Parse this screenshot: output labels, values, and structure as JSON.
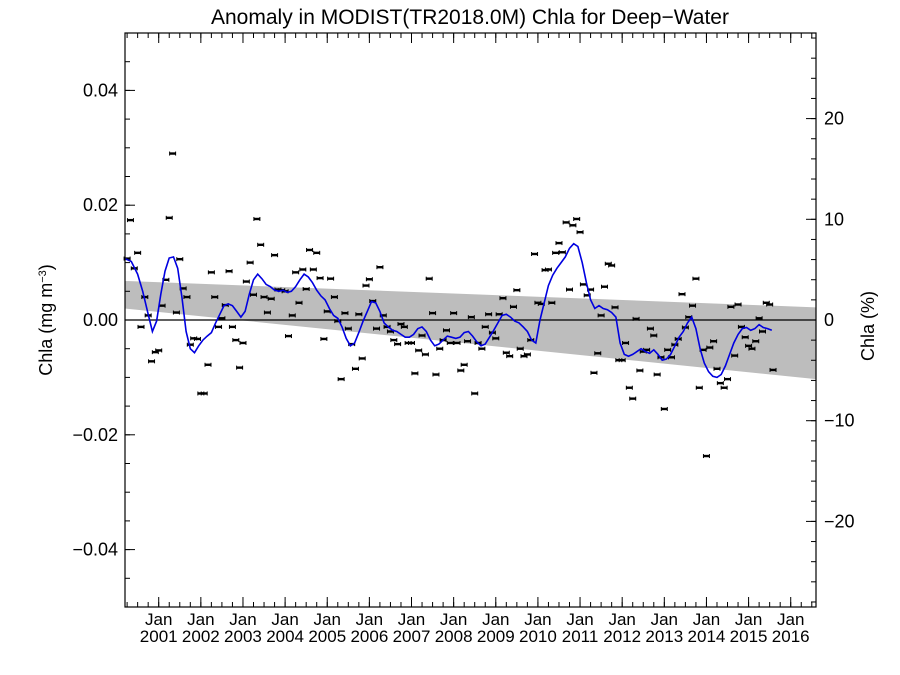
{
  "chart_data": {
    "type": "scatter",
    "title": "Anomaly in MODIST(TR2018.0M) Chla for Deep−Water",
    "ylabel_left": "Chla (mg m",
    "ylabel_left_sup": "−3",
    "ylabel_left_close": ")",
    "ylabel_right": "Chla (%)",
    "xlim": [
      2000.2,
      2016.6
    ],
    "ylim": [
      -0.05,
      0.05
    ],
    "y2lim": [
      -28.5,
      28.5
    ],
    "y_ticks": [
      -0.04,
      -0.02,
      0.0,
      0.02,
      0.04
    ],
    "y_tick_labels": [
      "−0.04",
      "−0.02",
      "0.00",
      "0.02",
      "0.04"
    ],
    "y2_ticks": [
      -20,
      -10,
      0,
      10,
      20
    ],
    "y2_tick_labels": [
      "−20",
      "−10",
      "0",
      "10",
      "20"
    ],
    "x_tick_labels": [
      {
        "x": 2001,
        "top": "Jan",
        "bottom": "2001"
      },
      {
        "x": 2002,
        "top": "Jan",
        "bottom": "2002"
      },
      {
        "x": 2003,
        "top": "Jan",
        "bottom": "2003"
      },
      {
        "x": 2004,
        "top": "Jan",
        "bottom": "2004"
      },
      {
        "x": 2005,
        "top": "Jan",
        "bottom": "2005"
      },
      {
        "x": 2006,
        "top": "Jan",
        "bottom": "2006"
      },
      {
        "x": 2007,
        "top": "Jan",
        "bottom": "2007"
      },
      {
        "x": 2008,
        "top": "Jan",
        "bottom": "2008"
      },
      {
        "x": 2009,
        "top": "Jan",
        "bottom": "2009"
      },
      {
        "x": 2010,
        "top": "Jan",
        "bottom": "2010"
      },
      {
        "x": 2011,
        "top": "Jan",
        "bottom": "2011"
      },
      {
        "x": 2012,
        "top": "Jan",
        "bottom": "2012"
      },
      {
        "x": 2013,
        "top": "Jan",
        "bottom": "2013"
      },
      {
        "x": 2014,
        "top": "Jan",
        "bottom": "2014"
      },
      {
        "x": 2015,
        "top": "Jan",
        "bottom": "2015"
      },
      {
        "x": 2016,
        "top": "Jan",
        "bottom": "2016"
      }
    ],
    "zero_line": 0.0,
    "confidence_band": {
      "x": [
        2000.2,
        2016.6
      ],
      "upper": [
        0.0068,
        0.0022
      ],
      "lower": [
        0.002,
        -0.0103
      ]
    },
    "points": [
      [
        2000.25,
        0.0107
      ],
      [
        2000.33,
        0.0174
      ],
      [
        2000.42,
        0.009
      ],
      [
        2000.5,
        0.0117
      ],
      [
        2000.58,
        -0.0012
      ],
      [
        2000.67,
        0.004
      ],
      [
        2000.75,
        0.0008
      ],
      [
        2000.83,
        -0.0072
      ],
      [
        2000.92,
        -0.0056
      ],
      [
        2001.0,
        -0.0053
      ],
      [
        2001.08,
        0.0025
      ],
      [
        2001.17,
        0.007
      ],
      [
        2001.25,
        0.0178
      ],
      [
        2001.33,
        0.029
      ],
      [
        2001.42,
        0.0013
      ],
      [
        2001.5,
        0.0106
      ],
      [
        2001.58,
        0.0055
      ],
      [
        2001.67,
        0.004
      ],
      [
        2001.75,
        -0.0043
      ],
      [
        2001.83,
        -0.0032
      ],
      [
        2001.92,
        -0.0033
      ],
      [
        2002.0,
        -0.0128
      ],
      [
        2002.08,
        -0.0128
      ],
      [
        2002.17,
        -0.0078
      ],
      [
        2002.25,
        0.0083
      ],
      [
        2002.33,
        0.004
      ],
      [
        2002.42,
        -0.0012
      ],
      [
        2002.5,
        0.0003
      ],
      [
        2002.58,
        0.0026
      ],
      [
        2002.67,
        0.0085
      ],
      [
        2002.75,
        -0.0012
      ],
      [
        2002.83,
        -0.0035
      ],
      [
        2002.92,
        -0.0083
      ],
      [
        2003.0,
        -0.004
      ],
      [
        2003.08,
        0.0067
      ],
      [
        2003.17,
        0.01
      ],
      [
        2003.25,
        0.0044
      ],
      [
        2003.33,
        0.0176
      ],
      [
        2003.42,
        0.0131
      ],
      [
        2003.5,
        0.004
      ],
      [
        2003.58,
        0.0013
      ],
      [
        2003.67,
        0.0037
      ],
      [
        2003.75,
        0.0113
      ],
      [
        2003.83,
        0.0053
      ],
      [
        2003.92,
        0.0052
      ],
      [
        2004.0,
        0.005
      ],
      [
        2004.08,
        -0.0028
      ],
      [
        2004.17,
        0.0008
      ],
      [
        2004.25,
        0.0083
      ],
      [
        2004.33,
        0.003
      ],
      [
        2004.42,
        0.0088
      ],
      [
        2004.5,
        0.0054
      ],
      [
        2004.58,
        0.0122
      ],
      [
        2004.67,
        0.0088
      ],
      [
        2004.75,
        0.0117
      ],
      [
        2004.83,
        0.0073
      ],
      [
        2004.92,
        -0.0033
      ],
      [
        2005.0,
        0.0015
      ],
      [
        2005.08,
        0.0072
      ],
      [
        2005.17,
        0.004
      ],
      [
        2005.25,
        -0.0002
      ],
      [
        2005.33,
        -0.0103
      ],
      [
        2005.42,
        0.0012
      ],
      [
        2005.5,
        -0.0015
      ],
      [
        2005.58,
        -0.0042
      ],
      [
        2005.67,
        -0.0085
      ],
      [
        2005.75,
        0.001
      ],
      [
        2005.83,
        -0.0067
      ],
      [
        2005.92,
        0.006
      ],
      [
        2006.0,
        0.0071
      ],
      [
        2006.08,
        0.0033
      ],
      [
        2006.17,
        -0.0015
      ],
      [
        2006.25,
        0.0092
      ],
      [
        2006.33,
        0.0008
      ],
      [
        2006.42,
        -0.0012
      ],
      [
        2006.5,
        -0.002
      ],
      [
        2006.58,
        -0.0035
      ],
      [
        2006.67,
        -0.0042
      ],
      [
        2006.75,
        -0.0007
      ],
      [
        2006.83,
        -0.0012
      ],
      [
        2006.92,
        -0.004
      ],
      [
        2007.0,
        -0.004
      ],
      [
        2007.08,
        -0.0093
      ],
      [
        2007.17,
        -0.0053
      ],
      [
        2007.25,
        -0.0027
      ],
      [
        2007.33,
        -0.006
      ],
      [
        2007.42,
        0.0072
      ],
      [
        2007.5,
        0.0012
      ],
      [
        2007.58,
        -0.0095
      ],
      [
        2007.67,
        -0.005
      ],
      [
        2007.75,
        -0.0035
      ],
      [
        2007.83,
        -0.0018
      ],
      [
        2007.92,
        -0.004
      ],
      [
        2008.0,
        0.0012
      ],
      [
        2008.08,
        -0.004
      ],
      [
        2008.17,
        -0.0088
      ],
      [
        2008.25,
        -0.0078
      ],
      [
        2008.33,
        -0.0037
      ],
      [
        2008.42,
        0.0005
      ],
      [
        2008.5,
        -0.0128
      ],
      [
        2008.58,
        -0.004
      ],
      [
        2008.67,
        -0.005
      ],
      [
        2008.75,
        -0.0012
      ],
      [
        2008.83,
        0.001
      ],
      [
        2008.92,
        -0.0022
      ],
      [
        2009.0,
        -0.0032
      ],
      [
        2009.08,
        0.001
      ],
      [
        2009.17,
        0.0038
      ],
      [
        2009.25,
        -0.0057
      ],
      [
        2009.33,
        -0.0063
      ],
      [
        2009.42,
        0.0023
      ],
      [
        2009.5,
        0.0052
      ],
      [
        2009.58,
        -0.005
      ],
      [
        2009.67,
        -0.0063
      ],
      [
        2009.75,
        -0.006
      ],
      [
        2009.83,
        -0.0035
      ],
      [
        2009.92,
        0.0115
      ],
      [
        2010.0,
        0.003
      ],
      [
        2010.08,
        0.0028
      ],
      [
        2010.17,
        0.0087
      ],
      [
        2010.25,
        0.0088
      ],
      [
        2010.33,
        0.003
      ],
      [
        2010.42,
        0.0117
      ],
      [
        2010.5,
        0.0134
      ],
      [
        2010.58,
        0.0118
      ],
      [
        2010.67,
        0.017
      ],
      [
        2010.75,
        0.0053
      ],
      [
        2010.83,
        0.0165
      ],
      [
        2010.92,
        0.0176
      ],
      [
        2011.0,
        0.0153
      ],
      [
        2011.08,
        0.0062
      ],
      [
        2011.17,
        0.0043
      ],
      [
        2011.25,
        0.0053
      ],
      [
        2011.33,
        -0.0092
      ],
      [
        2011.42,
        -0.0058
      ],
      [
        2011.5,
        0.0008
      ],
      [
        2011.58,
        0.0058
      ],
      [
        2011.67,
        0.0098
      ],
      [
        2011.75,
        0.0095
      ],
      [
        2011.83,
        0.0022
      ],
      [
        2011.92,
        -0.007
      ],
      [
        2012.0,
        -0.007
      ],
      [
        2012.08,
        -0.004
      ],
      [
        2012.17,
        -0.0118
      ],
      [
        2012.25,
        -0.0137
      ],
      [
        2012.33,
        0.0002
      ],
      [
        2012.42,
        -0.0088
      ],
      [
        2012.5,
        -0.0055
      ],
      [
        2012.58,
        -0.0052
      ],
      [
        2012.67,
        -0.0015
      ],
      [
        2012.75,
        -0.0027
      ],
      [
        2012.83,
        -0.0095
      ],
      [
        2012.92,
        -0.0065
      ],
      [
        2013.0,
        -0.0155
      ],
      [
        2013.08,
        -0.0052
      ],
      [
        2013.17,
        -0.0065
      ],
      [
        2013.25,
        -0.0043
      ],
      [
        2013.33,
        -0.0033
      ],
      [
        2013.42,
        0.0045
      ],
      [
        2013.5,
        -0.0013
      ],
      [
        2013.58,
        0.0005
      ],
      [
        2013.67,
        0.0025
      ],
      [
        2013.75,
        0.0072
      ],
      [
        2013.83,
        -0.0118
      ],
      [
        2013.92,
        -0.0052
      ],
      [
        2014.0,
        -0.0237
      ],
      [
        2014.08,
        -0.0048
      ],
      [
        2014.17,
        -0.0037
      ],
      [
        2014.25,
        -0.0085
      ],
      [
        2014.33,
        -0.011
      ],
      [
        2014.42,
        -0.0118
      ],
      [
        2014.5,
        -0.0103
      ],
      [
        2014.58,
        0.0023
      ],
      [
        2014.67,
        -0.0062
      ],
      [
        2014.75,
        0.0027
      ],
      [
        2014.83,
        -0.0012
      ],
      [
        2014.92,
        -0.003
      ],
      [
        2015.0,
        -0.0045
      ],
      [
        2015.08,
        -0.005
      ],
      [
        2015.17,
        -0.0037
      ],
      [
        2015.25,
        0.0003
      ],
      [
        2015.33,
        -0.002
      ],
      [
        2015.42,
        0.003
      ],
      [
        2015.5,
        0.0027
      ],
      [
        2015.58,
        -0.0087
      ]
    ],
    "smoothed_series": {
      "color": "#0000e0",
      "x": [
        2000.2,
        2000.35,
        2000.5,
        2000.62,
        2000.75,
        2000.85,
        2000.95,
        2001.05,
        2001.15,
        2001.25,
        2001.35,
        2001.45,
        2001.55,
        2001.65,
        2001.75,
        2001.85,
        2001.95,
        2002.05,
        2002.15,
        2002.25,
        2002.35,
        2002.45,
        2002.55,
        2002.65,
        2002.75,
        2002.85,
        2002.95,
        2003.05,
        2003.15,
        2003.25,
        2003.35,
        2003.45,
        2003.55,
        2003.65,
        2003.75,
        2003.85,
        2003.95,
        2004.05,
        2004.15,
        2004.25,
        2004.35,
        2004.45,
        2004.55,
        2004.65,
        2004.75,
        2004.85,
        2004.95,
        2005.05,
        2005.15,
        2005.25,
        2005.35,
        2005.45,
        2005.55,
        2005.65,
        2005.75,
        2005.85,
        2005.95,
        2006.05,
        2006.15,
        2006.25,
        2006.35,
        2006.45,
        2006.55,
        2006.65,
        2006.75,
        2006.85,
        2006.95,
        2007.05,
        2007.15,
        2007.25,
        2007.35,
        2007.45,
        2007.55,
        2007.65,
        2007.75,
        2007.85,
        2007.95,
        2008.05,
        2008.15,
        2008.25,
        2008.35,
        2008.45,
        2008.55,
        2008.65,
        2008.75,
        2008.85,
        2008.95,
        2009.05,
        2009.15,
        2009.25,
        2009.35,
        2009.45,
        2009.55,
        2009.65,
        2009.75,
        2009.85,
        2009.95,
        2010.05,
        2010.15,
        2010.25,
        2010.35,
        2010.45,
        2010.55,
        2010.65,
        2010.75,
        2010.85,
        2010.95,
        2011.05,
        2011.15,
        2011.25,
        2011.35,
        2011.45,
        2011.55,
        2011.65,
        2011.75,
        2011.85,
        2011.95,
        2012.05,
        2012.15,
        2012.25,
        2012.35,
        2012.45,
        2012.55,
        2012.65,
        2012.75,
        2012.85,
        2012.95,
        2013.05,
        2013.15,
        2013.25,
        2013.35,
        2013.45,
        2013.55,
        2013.65,
        2013.75,
        2013.85,
        2013.95,
        2014.05,
        2014.15,
        2014.25,
        2014.35,
        2014.45,
        2014.55,
        2014.65,
        2014.75,
        2014.85,
        2014.95,
        2015.05,
        2015.15,
        2015.25,
        2015.35,
        2015.45,
        2015.55
      ],
      "y": [
        0.0107,
        0.0102,
        0.008,
        0.005,
        0.001,
        -0.002,
        -0.0002,
        0.0045,
        0.0085,
        0.0108,
        0.011,
        0.009,
        0.004,
        -0.002,
        -0.005,
        -0.0057,
        -0.0045,
        -0.0035,
        -0.0028,
        -0.0022,
        -0.0005,
        0.001,
        0.0025,
        0.0028,
        0.0025,
        0.0015,
        0.0005,
        0.0015,
        0.0045,
        0.007,
        0.008,
        0.0072,
        0.0062,
        0.0058,
        0.0052,
        0.005,
        0.0052,
        0.0048,
        0.005,
        0.0058,
        0.007,
        0.008,
        0.0075,
        0.0065,
        0.0052,
        0.0042,
        0.0035,
        0.002,
        0.0008,
        0.0003,
        -0.0012,
        -0.0032,
        -0.0045,
        -0.004,
        -0.0022,
        -0.0002,
        0.0015,
        0.0032,
        0.003,
        0.0015,
        -0.0005,
        -0.0012,
        -0.0018,
        -0.002,
        -0.0025,
        -0.003,
        -0.003,
        -0.0025,
        -0.0015,
        -0.0012,
        -0.002,
        -0.0035,
        -0.0045,
        -0.0042,
        -0.0035,
        -0.0028,
        -0.003,
        -0.0032,
        -0.003,
        -0.0022,
        -0.002,
        -0.0028,
        -0.0038,
        -0.0045,
        -0.0042,
        -0.003,
        -0.0018,
        -0.0005,
        0.0008,
        0.001,
        0.0005,
        -0.0002,
        -0.0005,
        -0.0012,
        -0.002,
        -0.0035,
        -0.004,
        0.0,
        0.003,
        0.006,
        0.0078,
        0.009,
        0.01,
        0.011,
        0.0125,
        0.0133,
        0.0128,
        0.01,
        0.0065,
        0.0035,
        0.002,
        0.0025,
        0.002,
        0.0018,
        0.0013,
        0.0005,
        -0.004,
        -0.006,
        -0.0063,
        -0.006,
        -0.0055,
        -0.005,
        -0.0055,
        -0.0058,
        -0.0052,
        -0.006,
        -0.007,
        -0.0068,
        -0.006,
        -0.0045,
        -0.003,
        -0.002,
        -0.0005,
        0.0005,
        -0.0015,
        -0.005,
        -0.0075,
        -0.009,
        -0.0098,
        -0.01,
        -0.0095,
        -0.008,
        -0.006,
        -0.004,
        -0.0025,
        -0.0015,
        -0.0013,
        -0.0018,
        -0.0015,
        -0.0008,
        -0.0013,
        -0.0015,
        -0.0018
      ]
    }
  }
}
